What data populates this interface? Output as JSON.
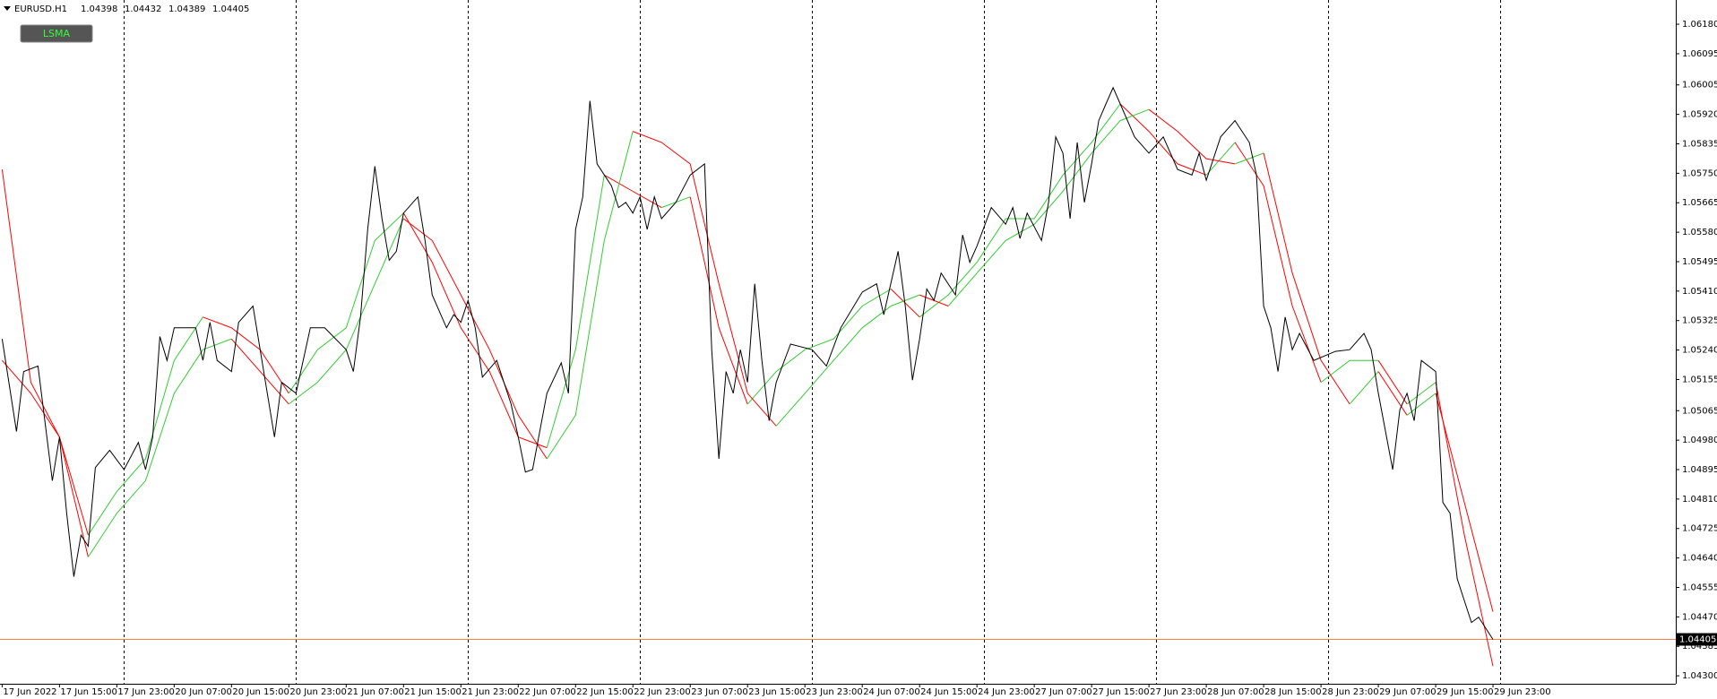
{
  "chart_data": {
    "type": "line",
    "symbol": "EURUSD.H1",
    "ohlc": [
      1.04398,
      1.04432,
      1.04389,
      1.04405
    ],
    "indicator_label": "LSMA",
    "xlim": [
      -0.3,
      233.5
    ],
    "ylim": [
      1.04277,
      1.0625
    ],
    "xticks": [
      {
        "value": 0,
        "label": "17 Jun 2022"
      },
      {
        "value": 8,
        "label": "17 Jun 15:00"
      },
      {
        "value": 16,
        "label": "17 Jun 23:00"
      },
      {
        "value": 24,
        "label": "20 Jun 07:00"
      },
      {
        "value": 32,
        "label": "20 Jun 15:00"
      },
      {
        "value": 40,
        "label": "20 Jun 23:00"
      },
      {
        "value": 48,
        "label": "21 Jun 07:00"
      },
      {
        "value": 56,
        "label": "21 Jun 15:00"
      },
      {
        "value": 64,
        "label": "21 Jun 23:00"
      },
      {
        "value": 72,
        "label": "22 Jun 07:00"
      },
      {
        "value": 80,
        "label": "22 Jun 15:00"
      },
      {
        "value": 88,
        "label": "22 Jun 23:00"
      },
      {
        "value": 96,
        "label": "23 Jun 07:00"
      },
      {
        "value": 104,
        "label": "23 Jun 15:00"
      },
      {
        "value": 112,
        "label": "23 Jun 23:00"
      },
      {
        "value": 120,
        "label": "24 Jun 07:00"
      },
      {
        "value": 128,
        "label": "24 Jun 15:00"
      },
      {
        "value": 136,
        "label": "24 Jun 23:00"
      },
      {
        "value": 144,
        "label": "27 Jun 07:00"
      },
      {
        "value": 152,
        "label": "27 Jun 15:00"
      },
      {
        "value": 160,
        "label": "27 Jun 23:00"
      },
      {
        "value": 168,
        "label": "28 Jun 07:00"
      },
      {
        "value": 176,
        "label": "28 Jun 15:00"
      },
      {
        "value": 184,
        "label": "28 Jun 23:00"
      },
      {
        "value": 192,
        "label": "29 Jun 07:00"
      },
      {
        "value": 200,
        "label": "29 Jun 15:00"
      },
      {
        "value": 208,
        "label": "29 Jun 23:00"
      }
    ],
    "yticks": [
      {
        "value": 1.0618,
        "label": "1.06180"
      },
      1.06095,
      1.06005,
      {
        "value": 1.0592,
        "label": "1.05920"
      },
      1.05835,
      {
        "value": 1.0575,
        "label": "1.05750"
      },
      1.05665,
      {
        "value": 1.0558,
        "label": "1.05580"
      },
      1.05495,
      {
        "value": 1.0541,
        "label": "1.05410"
      },
      1.05325,
      {
        "value": 1.0524,
        "label": "1.05240"
      },
      1.05155,
      1.05065,
      {
        "value": 1.0498,
        "label": "1.04980"
      },
      1.04895,
      {
        "value": 1.0481,
        "label": "1.04810"
      },
      1.04725,
      {
        "value": 1.0464,
        "label": "1.04640"
      },
      1.04555,
      {
        "value": 1.0447,
        "label": "1.04470"
      },
      1.04385,
      {
        "value": 1.043,
        "label": "1.04300"
      }
    ],
    "day_separators": [
      17,
      41,
      65,
      89,
      113,
      137,
      161,
      185,
      209
    ],
    "last_price_color": "#ff8040",
    "series": [
      {
        "color": "#000000",
        "x": [
          0,
          2,
          3,
          5,
          7,
          8,
          9,
          10,
          11,
          12,
          13,
          15,
          17,
          19,
          20,
          21,
          22,
          23,
          24,
          27,
          28,
          29,
          30,
          32,
          33,
          35,
          37,
          38,
          39,
          41,
          43,
          45,
          48,
          49,
          50,
          51,
          52,
          53,
          54,
          55,
          56,
          58,
          59,
          60,
          62,
          63,
          64,
          65,
          66,
          67,
          69,
          71,
          72,
          73,
          74,
          76,
          78,
          79,
          80,
          81,
          82,
          83,
          85,
          86,
          87,
          88,
          89,
          90,
          91,
          92,
          94,
          96,
          98,
          99,
          100,
          101,
          102,
          103,
          104,
          105,
          106,
          107,
          108,
          110,
          113,
          115,
          117,
          120,
          122,
          123,
          125,
          126,
          127,
          128,
          129,
          130,
          131,
          133,
          134,
          135,
          136,
          138,
          140,
          141,
          142,
          143,
          145,
          146,
          147,
          148,
          149,
          150,
          151,
          152,
          153,
          154,
          155,
          156,
          158,
          160,
          162,
          164,
          166,
          167,
          168,
          170,
          172,
          174,
          175,
          176,
          177,
          178,
          179,
          180,
          181,
          183,
          186,
          188,
          190,
          191,
          192,
          194,
          195,
          196,
          197,
          198,
          200,
          201,
          202,
          203,
          205,
          206,
          208
        ],
        "values": [
          1.05272,
          1.05005,
          1.05178,
          1.05194,
          1.04863,
          1.04989,
          1.04769,
          1.04586,
          1.04706,
          1.04674,
          1.04901,
          1.04951,
          1.04895,
          1.04973,
          1.04895,
          1.04989,
          1.05279,
          1.0521,
          1.05304,
          1.05304,
          1.0521,
          1.0532,
          1.0521,
          1.05178,
          1.0532,
          1.05367,
          1.05115,
          1.04989,
          1.05147,
          1.05115,
          1.05304,
          1.05304,
          1.05241,
          1.05178,
          1.05335,
          1.05588,
          1.0577,
          1.05619,
          1.05499,
          1.05525,
          1.05635,
          1.05682,
          1.05556,
          1.05399,
          1.05304,
          1.05342,
          1.0532,
          1.05383,
          1.05304,
          1.05162,
          1.0521,
          1.05084,
          1.04989,
          1.04888,
          1.04895,
          1.05115,
          1.05203,
          1.05115,
          1.05588,
          1.05682,
          1.05959,
          1.05777,
          1.05714,
          1.05651,
          1.05666,
          1.05635,
          1.05682,
          1.05588,
          1.05682,
          1.05619,
          1.05666,
          1.05745,
          1.05777,
          1.05241,
          1.04926,
          1.05178,
          1.05115,
          1.05241,
          1.05147,
          1.05431,
          1.0521,
          1.05036,
          1.05147,
          1.05257,
          1.05241,
          1.05194,
          1.05304,
          1.05407,
          1.05431,
          1.05342,
          1.05525,
          1.05367,
          1.05153,
          1.05272,
          1.05416,
          1.05383,
          1.05462,
          1.05399,
          1.05572,
          1.05493,
          1.0554,
          1.05651,
          1.05603,
          1.05651,
          1.05562,
          1.05635,
          1.05556,
          1.05666,
          1.05855,
          1.05808,
          1.05619,
          1.05839,
          1.05666,
          1.05777,
          1.05902,
          1.0595,
          1.05997,
          1.0595,
          1.05855,
          1.05808,
          1.05855,
          1.05761,
          1.05745,
          1.05808,
          1.0573,
          1.05855,
          1.05902,
          1.05839,
          1.05745,
          1.05367,
          1.05304,
          1.05178,
          1.05335,
          1.05241,
          1.05288,
          1.0521,
          1.05236,
          1.05241,
          1.05288,
          1.05241,
          1.05115,
          1.04895,
          1.05068,
          1.05115,
          1.05036,
          1.0521,
          1.05178,
          1.048,
          1.04769,
          1.0458,
          1.04454,
          1.04469,
          1.04405
        ]
      }
    ],
    "lsma": {
      "up_color": "#33cc33",
      "down_color": "#ff0000",
      "x": [
        0,
        4,
        8,
        12,
        16,
        20,
        24,
        28,
        32,
        36,
        40,
        44,
        48,
        52,
        56,
        60,
        64,
        68,
        72,
        76,
        80,
        84,
        88,
        92,
        96,
        100,
        104,
        108,
        112,
        116,
        120,
        124,
        128,
        132,
        136,
        140,
        144,
        148,
        152,
        156,
        160,
        164,
        168,
        172,
        176,
        180,
        184,
        188,
        192,
        196,
        200,
        204,
        208
      ],
      "lines": [
        {
          "values": [
            1.0521,
            1.05115,
            1.04989,
            1.04706,
            1.04832,
            1.04926,
            1.0521,
            1.05335,
            1.05304,
            1.05241,
            1.05115,
            1.05241,
            1.05304,
            1.05556,
            1.05635,
            1.05493,
            1.05304,
            1.05178,
            1.04989,
            1.04958,
            1.05241,
            1.05745,
            1.05698,
            1.05651,
            1.05682,
            1.05304,
            1.05084,
            1.05178,
            1.05241,
            1.05272,
            1.05367,
            1.05416,
            1.05335,
            1.05399,
            1.05493,
            1.05619,
            1.05619,
            1.05745,
            1.05839,
            1.0595,
            1.05871,
            1.05777,
            1.05745,
            1.05839,
            1.05714,
            1.05367,
            1.05147,
            1.0521,
            1.0521,
            1.05084,
            1.05147,
            1.04706,
            1.04328
          ]
        },
        {
          "values": [
            1.05761,
            1.05147,
            1.04989,
            1.04643,
            1.04769,
            1.04863,
            1.05115,
            1.05241,
            1.05272,
            1.05178,
            1.05084,
            1.05147,
            1.05241,
            1.05431,
            1.05619,
            1.05556,
            1.05399,
            1.05241,
            1.05052,
            1.04926,
            1.05052,
            1.05556,
            1.05871,
            1.05839,
            1.05777,
            1.05431,
            1.05115,
            1.05021,
            1.05115,
            1.0521,
            1.05304,
            1.05367,
            1.05399,
            1.05367,
            1.05462,
            1.05556,
            1.05603,
            1.05698,
            1.05808,
            1.05902,
            1.05934,
            1.05871,
            1.05792,
            1.05777,
            1.05808,
            1.05462,
            1.0521,
            1.05084,
            1.05178,
            1.05052,
            1.05115,
            1.048,
            1.04485
          ]
        }
      ]
    }
  }
}
